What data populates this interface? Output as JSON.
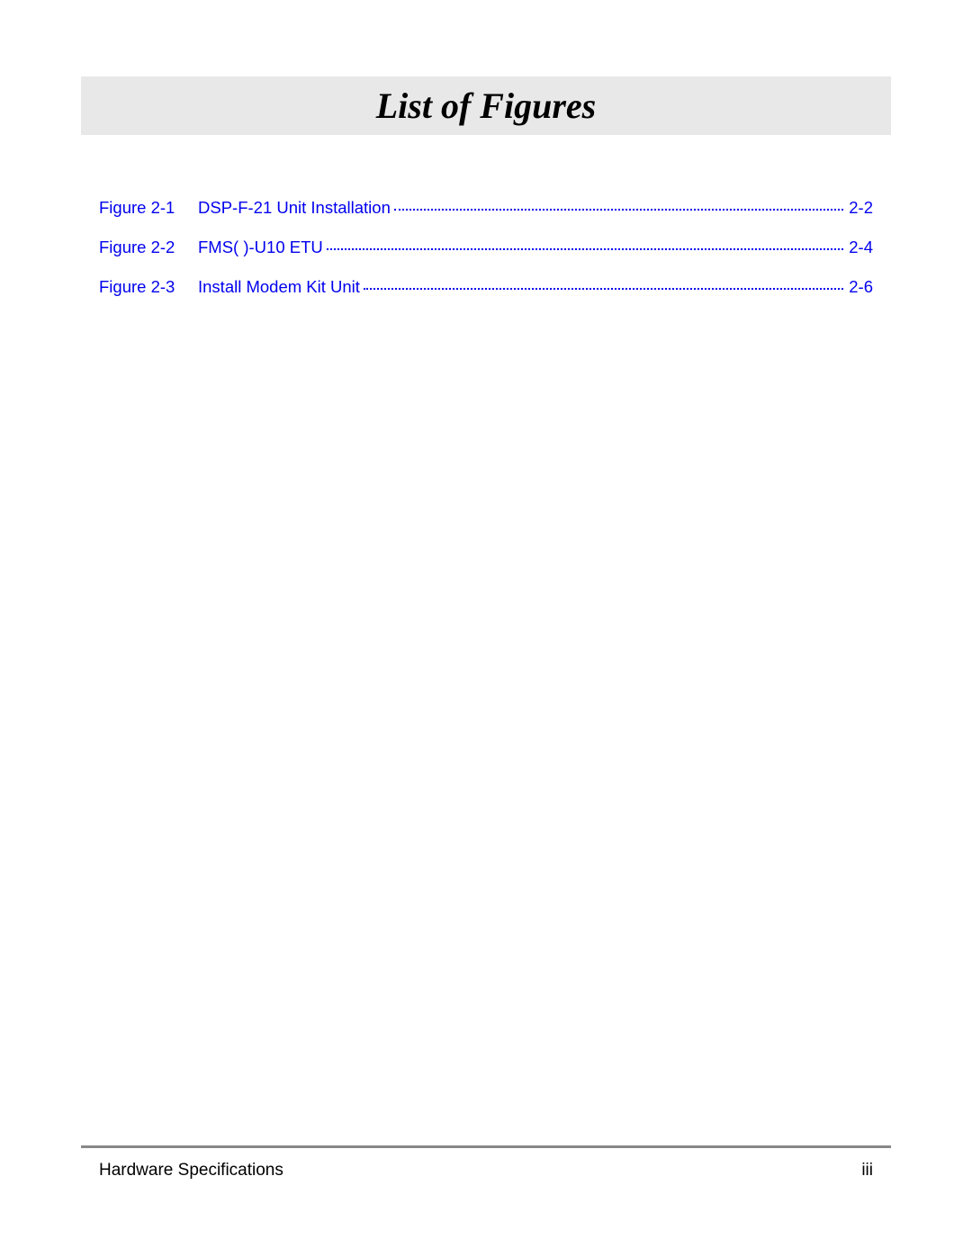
{
  "title": "List of Figures",
  "title_banner_bg": "#e8e8e8",
  "title_color": "#000000",
  "title_fontsize": 40,
  "link_color": "#0000ee",
  "entries": [
    {
      "label": "Figure 2-1",
      "title": "DSP-F-21 Unit Installation",
      "page": "2-2"
    },
    {
      "label": "Figure 2-2",
      "title": "FMS( )-U10 ETU",
      "page": "2-4"
    },
    {
      "label": "Figure 2-3",
      "title": "Install Modem Kit Unit",
      "page": "2-6"
    }
  ],
  "footer": {
    "left": "Hardware Specifications",
    "right": "iii",
    "rule_color": "#888888"
  }
}
